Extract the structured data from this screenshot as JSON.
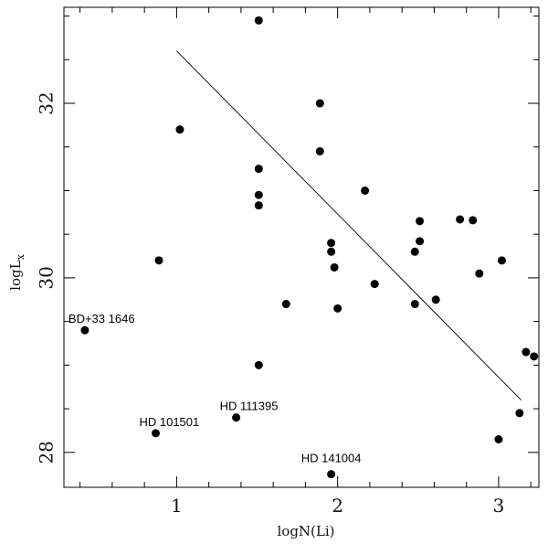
{
  "chart_data": {
    "type": "scatter",
    "xlabel": "logN(Li)",
    "ylabel": "logLx",
    "ylabel_main": "logL",
    "ylabel_sub": "x",
    "xlim": [
      0.3,
      3.25
    ],
    "ylim": [
      27.6,
      33.1
    ],
    "xticks": [
      1,
      2,
      3
    ],
    "yticks": [
      28,
      30,
      32
    ],
    "grid": false,
    "points": [
      {
        "x": 0.43,
        "y": 29.4
      },
      {
        "x": 0.87,
        "y": 28.22
      },
      {
        "x": 0.89,
        "y": 30.2
      },
      {
        "x": 1.02,
        "y": 31.7
      },
      {
        "x": 1.37,
        "y": 28.4
      },
      {
        "x": 1.51,
        "y": 32.95
      },
      {
        "x": 1.51,
        "y": 31.25
      },
      {
        "x": 1.51,
        "y": 30.95
      },
      {
        "x": 1.51,
        "y": 30.83
      },
      {
        "x": 1.51,
        "y": 29.0
      },
      {
        "x": 1.68,
        "y": 29.7
      },
      {
        "x": 1.89,
        "y": 32.0
      },
      {
        "x": 1.89,
        "y": 31.45
      },
      {
        "x": 1.96,
        "y": 30.4
      },
      {
        "x": 1.96,
        "y": 30.3
      },
      {
        "x": 1.96,
        "y": 27.75
      },
      {
        "x": 1.98,
        "y": 30.12
      },
      {
        "x": 2.0,
        "y": 29.65
      },
      {
        "x": 2.17,
        "y": 31.0
      },
      {
        "x": 2.23,
        "y": 29.93
      },
      {
        "x": 2.48,
        "y": 30.3
      },
      {
        "x": 2.48,
        "y": 29.7
      },
      {
        "x": 2.51,
        "y": 30.65
      },
      {
        "x": 2.51,
        "y": 30.42
      },
      {
        "x": 2.61,
        "y": 29.75
      },
      {
        "x": 2.76,
        "y": 30.67
      },
      {
        "x": 2.84,
        "y": 30.66
      },
      {
        "x": 2.88,
        "y": 30.05
      },
      {
        "x": 3.0,
        "y": 28.15
      },
      {
        "x": 3.02,
        "y": 30.2
      },
      {
        "x": 3.13,
        "y": 28.45
      },
      {
        "x": 3.17,
        "y": 29.15
      },
      {
        "x": 3.22,
        "y": 29.1
      }
    ],
    "fit_line": {
      "x": [
        1.0,
        3.14
      ],
      "y": [
        32.6,
        28.6
      ]
    },
    "annotations": [
      {
        "text": "BD+33 1646",
        "x": 0.43,
        "y": 29.4,
        "anchor": "above-right"
      },
      {
        "text": "HD 101501",
        "x": 0.87,
        "y": 28.22,
        "anchor": "above-right"
      },
      {
        "text": "HD 111395",
        "x": 1.37,
        "y": 28.4,
        "anchor": "above-right"
      },
      {
        "text": "HD 141004",
        "x": 1.96,
        "y": 27.75,
        "anchor": "above"
      }
    ]
  }
}
